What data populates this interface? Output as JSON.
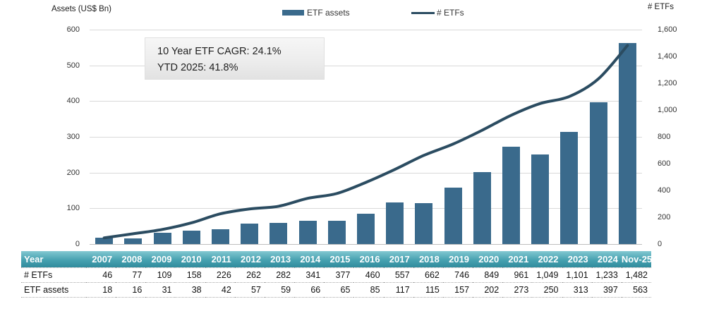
{
  "labels": {
    "assets_axis_title": "Assets (US$ Bn)",
    "count_axis_title": "# ETFs"
  },
  "colors": {
    "bar": "#3a6a8c",
    "line": "#2b4c61",
    "gridline": "#d9d9d9",
    "table_header_top": "#82c7d1",
    "table_header_mid": "#45a0af",
    "table_header_bottom": "#2e8a9b"
  },
  "chart_data": {
    "type": "bar",
    "title": "",
    "categories": [
      "2007",
      "2008",
      "2009",
      "2010",
      "2011",
      "2012",
      "2013",
      "2014",
      "2015",
      "2016",
      "2017",
      "2018",
      "2019",
      "2020",
      "2021",
      "2022",
      "2023",
      "2024",
      "Nov-25"
    ],
    "series": [
      {
        "name": "ETF assets",
        "type": "bar",
        "axis": "left",
        "values": [
          18,
          16,
          31,
          38,
          42,
          57,
          59,
          66,
          65,
          85,
          117,
          115,
          157,
          202,
          273,
          250,
          313,
          397,
          563
        ]
      },
      {
        "name": "# ETFs",
        "type": "line",
        "axis": "right",
        "values": [
          46,
          77,
          109,
          158,
          226,
          262,
          282,
          341,
          377,
          460,
          557,
          662,
          746,
          849,
          961,
          1049,
          1101,
          1233,
          1482
        ]
      }
    ],
    "left_axis": {
      "title": "Assets (US$ Bn)",
      "min": 0,
      "max": 600,
      "ticks": [
        {
          "value": 0,
          "label": "0"
        },
        {
          "value": 100,
          "label": "100"
        },
        {
          "value": 200,
          "label": "200"
        },
        {
          "value": 300,
          "label": "300"
        },
        {
          "value": 400,
          "label": "400"
        },
        {
          "value": 500,
          "label": "500"
        },
        {
          "value": 600,
          "label": "600"
        }
      ]
    },
    "right_axis": {
      "title": "# ETFs",
      "min": 0,
      "max": 1600,
      "ticks": [
        {
          "value": 0,
          "label": "0"
        },
        {
          "value": 200,
          "label": "200"
        },
        {
          "value": 400,
          "label": "400"
        },
        {
          "value": 600,
          "label": "600"
        },
        {
          "value": 800,
          "label": "800"
        },
        {
          "value": 1000,
          "label": "1,000"
        },
        {
          "value": 1200,
          "label": "1,200"
        },
        {
          "value": 1400,
          "label": "1,400"
        },
        {
          "value": 1600,
          "label": "1,600"
        }
      ]
    },
    "legend_position": "top-center",
    "grid": true,
    "annotation": {
      "line1": "10 Year ETF CAGR: 24.1%",
      "line2": "YTD 2025: 41.8%"
    }
  },
  "table": {
    "header": {
      "label": "Year",
      "columns": [
        "2007",
        "2008",
        "2009",
        "2010",
        "2011",
        "2012",
        "2013",
        "2014",
        "2015",
        "2016",
        "2017",
        "2018",
        "2019",
        "2020",
        "2021",
        "2022",
        "2023",
        "2024",
        "Nov-25"
      ]
    },
    "rows": [
      {
        "label": "# ETFs",
        "values": [
          "46",
          "77",
          "109",
          "158",
          "226",
          "262",
          "282",
          "341",
          "377",
          "460",
          "557",
          "662",
          "746",
          "849",
          "961",
          "1,049",
          "1,101",
          "1,233",
          "1,482"
        ]
      },
      {
        "label": "ETF assets",
        "values": [
          "18",
          "16",
          "31",
          "38",
          "42",
          "57",
          "59",
          "66",
          "65",
          "85",
          "117",
          "115",
          "157",
          "202",
          "273",
          "250",
          "313",
          "397",
          "563"
        ]
      }
    ]
  }
}
